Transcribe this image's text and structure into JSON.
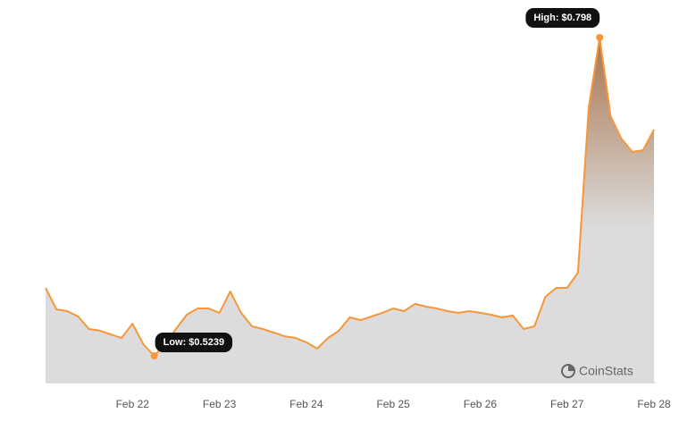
{
  "chart_data": {
    "type": "area",
    "categories": [
      null,
      null,
      null,
      null,
      null,
      null,
      null,
      null,
      "Feb 22",
      null,
      null,
      null,
      null,
      null,
      null,
      null,
      "Feb 23",
      null,
      null,
      null,
      null,
      null,
      null,
      null,
      "Feb 24",
      null,
      null,
      null,
      null,
      null,
      null,
      null,
      "Feb 25",
      null,
      null,
      null,
      null,
      null,
      null,
      null,
      "Feb 26",
      null,
      null,
      null,
      null,
      null,
      null,
      null,
      "Feb 27",
      null,
      null,
      null,
      null,
      null,
      null,
      null,
      "Feb 28"
    ],
    "values": [
      0.5824,
      0.5639,
      0.5624,
      0.5578,
      0.547,
      0.5455,
      0.5424,
      0.5393,
      0.5516,
      0.5339,
      0.5239,
      0.5339,
      0.547,
      0.5593,
      0.5647,
      0.5647,
      0.5609,
      0.5793,
      0.5609,
      0.5493,
      0.547,
      0.5439,
      0.5408,
      0.5393,
      0.5355,
      0.5301,
      0.5393,
      0.5455,
      0.557,
      0.5547,
      0.5578,
      0.5609,
      0.5647,
      0.5624,
      0.5686,
      0.5663,
      0.5647,
      0.5624,
      0.5609,
      0.5624,
      0.5609,
      0.5593,
      0.557,
      0.5586,
      0.547,
      0.5493,
      0.5747,
      0.5824,
      0.5824,
      0.5955,
      0.738,
      0.798,
      0.7303,
      0.711,
      0.6995,
      0.701,
      0.7187
    ],
    "color": "#f7963a",
    "annotations": [
      {
        "text": "High: $0.798"
      },
      {
        "text": "Low: $0.5239"
      }
    ],
    "watermark": "CoinStats"
  }
}
